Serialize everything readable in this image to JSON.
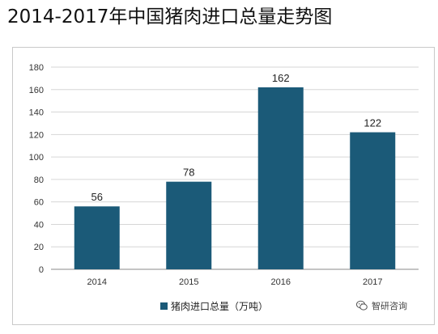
{
  "header": {
    "title": "2014-2017年中国猪肉进口总量走势图"
  },
  "chart_data": {
    "type": "bar",
    "title": "",
    "xlabel": "",
    "ylabel": "",
    "categories": [
      "2014",
      "2015",
      "2016",
      "2017"
    ],
    "series": [
      {
        "name": "猪肉进口总量（万吨）",
        "values": [
          56,
          78,
          162,
          122
        ],
        "color": "#1b5a78"
      }
    ],
    "data_labels": [
      "56",
      "78",
      "162",
      "122"
    ],
    "ylim": [
      0,
      180
    ],
    "yticks": [
      0,
      20,
      40,
      60,
      80,
      100,
      120,
      140,
      160,
      180
    ],
    "grid": true,
    "legend_position": "bottom-center"
  },
  "watermark": {
    "icon": "wechat-bubble-icon",
    "text": "智研咨询"
  }
}
